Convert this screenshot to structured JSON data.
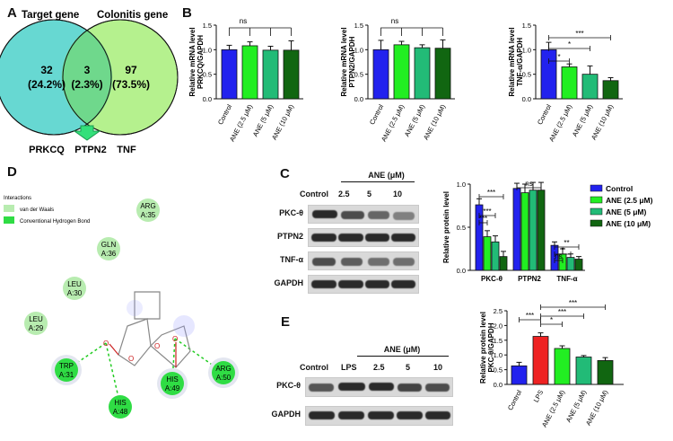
{
  "panels": {
    "A": "A",
    "B": "B",
    "C": "C",
    "D": "D",
    "E": "E"
  },
  "colors": {
    "control": "#2222ee",
    "ane25": "#22ee22",
    "ane5": "#22bb77",
    "ane10": "#116611",
    "lps": "#ee2222"
  },
  "venn": {
    "left_title": "Target gene",
    "right_title": "Colonitis gene",
    "left_count": "32",
    "left_pct": "(24.2%)",
    "mid_count": "3",
    "mid_pct": "(2.3%)",
    "right_count": "97",
    "right_pct": "(73.5%)",
    "genes": [
      "PRKCQ",
      "PTPN2",
      "TNF"
    ]
  },
  "docking": {
    "legend_title": "Interactions",
    "legend_items": [
      "van der Waals",
      "Conventional Hydrogen Bond"
    ],
    "residues": [
      {
        "name": "ARG",
        "num": "A:35"
      },
      {
        "name": "GLN",
        "num": "A:36"
      },
      {
        "name": "LEU",
        "num": "A:30"
      },
      {
        "name": "LEU",
        "num": "A:29"
      },
      {
        "name": "TRP",
        "num": "A:31"
      },
      {
        "name": "HIS",
        "num": "A:48"
      },
      {
        "name": "HIS",
        "num": "A:49"
      },
      {
        "name": "ARG",
        "num": "A:50"
      }
    ],
    "atom_label": "O"
  },
  "blot_C": {
    "header": "ANE  (μM)",
    "lanes": [
      "Control",
      "2.5",
      "5",
      "10"
    ],
    "rows": [
      "PKC-θ",
      "PTPN2",
      "TNF-α",
      "GAPDH"
    ]
  },
  "blot_E": {
    "header": "ANE  (μM)",
    "lanes": [
      "Control",
      "LPS",
      "2.5",
      "5",
      "10"
    ],
    "rows": [
      "PKC-θ",
      "GAPDH"
    ]
  },
  "chart_data": [
    {
      "type": "bar",
      "panel": "B1",
      "categories": [
        "Control",
        "ANE (2.5 μM)",
        "ANE (5 μM)",
        "ANE (10 μM)"
      ],
      "values": [
        1.0,
        1.08,
        0.99,
        0.99
      ],
      "errors": [
        0.09,
        0.08,
        0.08,
        0.19
      ],
      "ylabel": "Relative mRNA level PRKCQ/GAPDH",
      "ylim": [
        0,
        1.5
      ],
      "yticks": [
        "0.0",
        "0.5",
        "1.0",
        "1.5"
      ],
      "sig": [
        "ns"
      ]
    },
    {
      "type": "bar",
      "panel": "B2",
      "categories": [
        "Control",
        "ANE (2.5 μM)",
        "ANE (5 μM)",
        "ANE (10 μM)"
      ],
      "values": [
        1.0,
        1.1,
        1.04,
        1.03
      ],
      "errors": [
        0.19,
        0.07,
        0.06,
        0.17
      ],
      "ylabel": "Relative mRNA level PTPN2/GAPDH",
      "ylim": [
        0,
        1.5
      ],
      "yticks": [
        "0.0",
        "0.5",
        "1.0",
        "1.5"
      ],
      "sig": [
        "ns"
      ]
    },
    {
      "type": "bar",
      "panel": "B3",
      "categories": [
        "Control",
        "ANE (2.5 μM)",
        "ANE (5 μM)",
        "ANE (10 μM)"
      ],
      "values": [
        1.0,
        0.65,
        0.5,
        0.37
      ],
      "errors": [
        0.15,
        0.06,
        0.17,
        0.06
      ],
      "ylabel": "Relative mRNA level TNF-α/GAPDH",
      "ylim": [
        0,
        1.5
      ],
      "yticks": [
        "0.0",
        "0.5",
        "1.0",
        "1.5"
      ],
      "sig": [
        "*",
        "*",
        "***"
      ]
    },
    {
      "type": "bar",
      "panel": "C",
      "categories": [
        "PKC-θ",
        "PTPN2",
        "TNF-α"
      ],
      "series": [
        {
          "name": "Control",
          "values": [
            0.76,
            0.95,
            0.29
          ]
        },
        {
          "name": "ANE (2.5 μM)",
          "values": [
            0.39,
            0.9,
            0.19
          ]
        },
        {
          "name": "ANE (5 μM)",
          "values": [
            0.33,
            0.93,
            0.15
          ]
        },
        {
          "name": "ANE (10 μM)",
          "values": [
            0.16,
            0.93,
            0.13
          ]
        }
      ],
      "errors": [
        [
          0.07,
          0.06,
          0.04
        ],
        [
          0.07,
          0.1,
          0.06
        ],
        [
          0.07,
          0.09,
          0.04
        ],
        [
          0.06,
          0.09,
          0.03
        ]
      ],
      "ylabel": "Relative protein level",
      "ylim": [
        0,
        1.0
      ],
      "yticks": [
        "0.0",
        "0.5",
        "1.0"
      ],
      "sig": [
        "***",
        "***",
        "***",
        "ns",
        "**",
        "*",
        "ns"
      ]
    },
    {
      "type": "bar",
      "panel": "E",
      "categories": [
        "Control",
        "LPS",
        "ANE (2.5 μM)",
        "ANE (5 μM)",
        "ANE (10 μM)"
      ],
      "values": [
        0.63,
        1.63,
        1.22,
        0.93,
        0.81
      ],
      "errors": [
        0.12,
        0.12,
        0.09,
        0.05,
        0.1
      ],
      "ylabel": "Relative protein level PKC-θ/GAPDH",
      "ylim": [
        0,
        2.5
      ],
      "yticks": [
        "0.0",
        "0.5",
        "1.0",
        "1.5",
        "2.0",
        "2.5"
      ],
      "sig": [
        "***",
        "*",
        "***",
        "***"
      ]
    }
  ]
}
